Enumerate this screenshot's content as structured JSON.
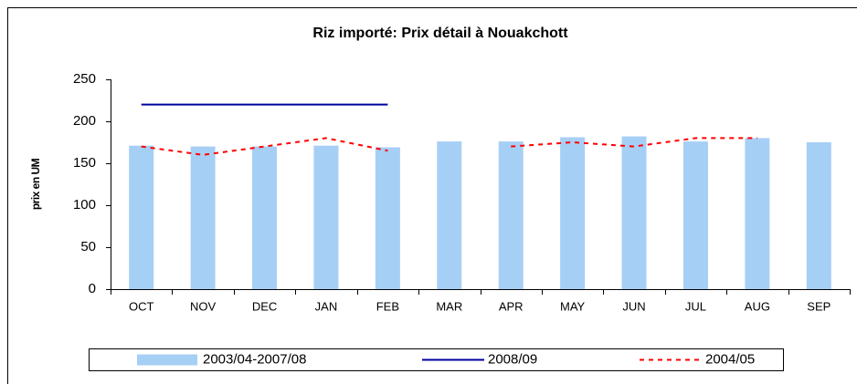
{
  "chart_data": {
    "type": "bar",
    "title": "Riz importé: Prix détail à Nouakchott",
    "y_label": "prix en UM",
    "categories": [
      "OCT",
      "NOV",
      "DEC",
      "JAN",
      "FEB",
      "MAR",
      "APR",
      "MAY",
      "JUN",
      "JUL",
      "AUG",
      "SEP"
    ],
    "series": [
      {
        "name": "2003/04-2007/08",
        "type": "bar",
        "color": "#a6cff5",
        "values": [
          171,
          170,
          170,
          171,
          169,
          176,
          176,
          181,
          182,
          176,
          180,
          175
        ]
      },
      {
        "name": "2008/09",
        "type": "line",
        "color": "#0000a0",
        "values": [
          220,
          220,
          220,
          220,
          220,
          null,
          null,
          null,
          null,
          null,
          null,
          null
        ]
      },
      {
        "name": "2004/05",
        "type": "dashed-line",
        "color": "#ff0000",
        "values": [
          170,
          160,
          170,
          180,
          165,
          null,
          170,
          175,
          170,
          180,
          180,
          null
        ]
      }
    ],
    "ylim": [
      0,
      250
    ],
    "yticks": [
      0,
      50,
      100,
      150,
      200,
      250
    ],
    "grid": false,
    "legend": "bottom"
  }
}
